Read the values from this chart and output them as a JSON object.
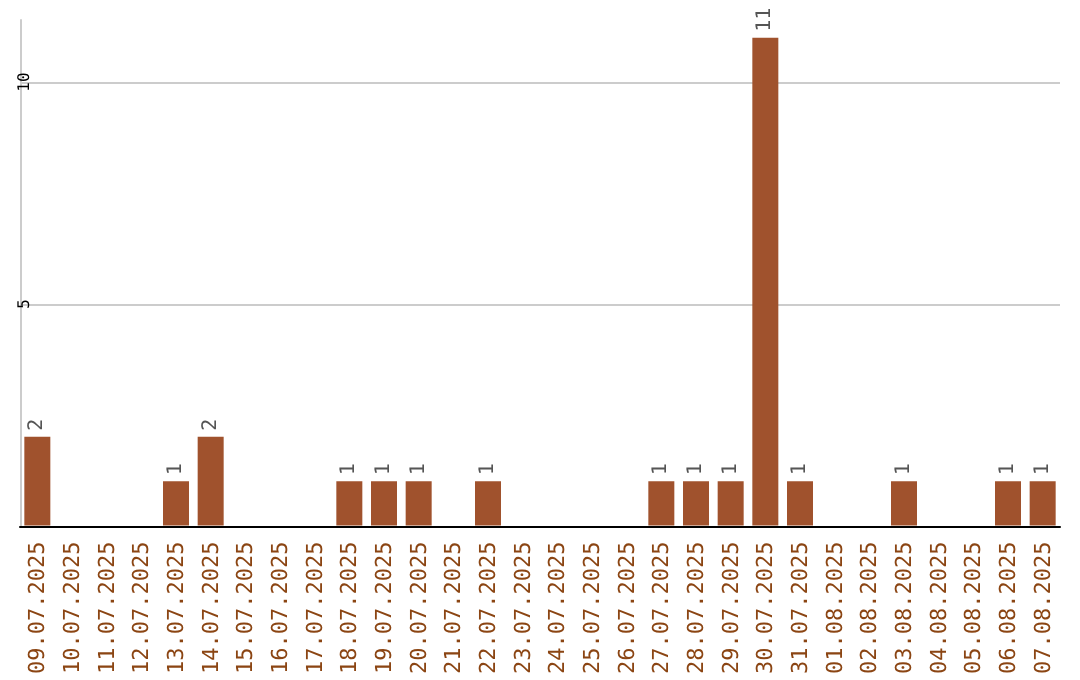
{
  "chart_data": {
    "type": "bar",
    "categories": [
      "09.07.2025",
      "10.07.2025",
      "11.07.2025",
      "12.07.2025",
      "13.07.2025",
      "14.07.2025",
      "15.07.2025",
      "16.07.2025",
      "17.07.2025",
      "18.07.2025",
      "19.07.2025",
      "20.07.2025",
      "21.07.2025",
      "22.07.2025",
      "23.07.2025",
      "24.07.2025",
      "25.07.2025",
      "26.07.2025",
      "27.07.2025",
      "28.07.2025",
      "29.07.2025",
      "30.07.2025",
      "31.07.2025",
      "01.08.2025",
      "02.08.2025",
      "03.08.2025",
      "04.08.2025",
      "05.08.2025",
      "06.08.2025",
      "07.08.2025"
    ],
    "values": [
      2,
      0,
      0,
      0,
      1,
      2,
      0,
      0,
      0,
      1,
      1,
      1,
      0,
      1,
      0,
      0,
      0,
      0,
      1,
      1,
      1,
      11,
      1,
      0,
      0,
      1,
      0,
      0,
      1,
      1
    ],
    "value_labels": [
      "2",
      null,
      null,
      null,
      "1",
      "2",
      null,
      null,
      null,
      "1",
      "1",
      "1",
      null,
      "1",
      null,
      null,
      null,
      null,
      "1",
      "1",
      "1",
      "11",
      "1",
      null,
      null,
      "1",
      null,
      null,
      "1",
      "1"
    ],
    "color": "#a0522d",
    "ylim": [
      0,
      11.4
    ],
    "yticks": [
      {
        "value": 0,
        "label": null
      },
      5,
      10
    ],
    "grid": "y"
  }
}
